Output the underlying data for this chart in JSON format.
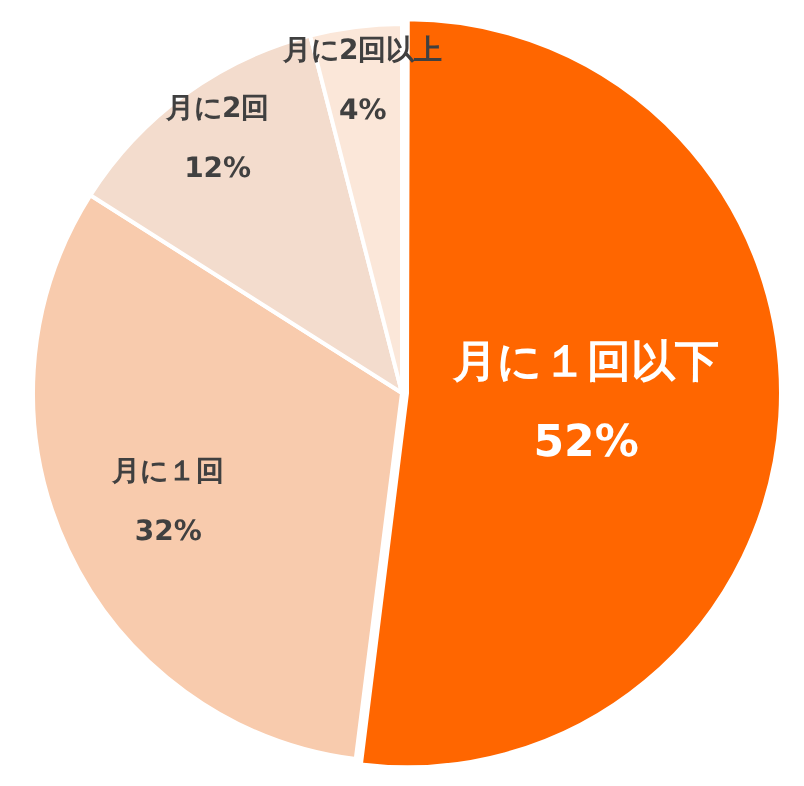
{
  "chart_data": {
    "type": "pie",
    "categories": [
      "月に１回以下",
      "月に１回",
      "月に2回",
      "月に2回以上"
    ],
    "values": [
      52,
      32,
      12,
      4
    ],
    "value_labels": [
      "52%",
      "32%",
      "12%",
      "4%"
    ],
    "colors": [
      "#ff6600",
      "#f8cbad",
      "#f3dccd",
      "#fbe7d9"
    ],
    "legend": false
  }
}
